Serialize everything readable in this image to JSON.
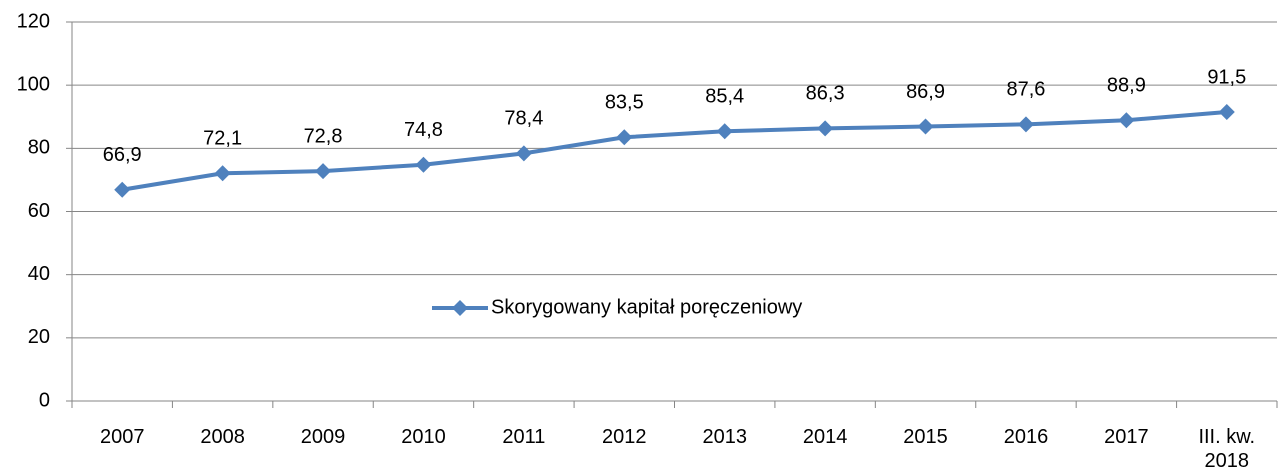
{
  "chart_data": {
    "type": "line",
    "categories": [
      "2007",
      "2008",
      "2009",
      "2010",
      "2011",
      "2012",
      "2013",
      "2014",
      "2015",
      "2016",
      "2017",
      "III. kw. 2018"
    ],
    "series": [
      {
        "name": "Skorygowany kapitał poręczeniowy",
        "color": "#4f81bd",
        "values": [
          66.9,
          72.1,
          72.8,
          74.8,
          78.4,
          83.5,
          85.4,
          86.3,
          86.9,
          87.6,
          88.9,
          91.5
        ],
        "value_labels": [
          "66,9",
          "72,1",
          "72,8",
          "74,8",
          "78,4",
          "83,5",
          "85,4",
          "86,3",
          "86,9",
          "87,6",
          "88,9",
          "91,5"
        ]
      }
    ],
    "ylim": [
      0,
      120
    ],
    "yticks": [
      0,
      20,
      40,
      60,
      80,
      100,
      120
    ],
    "grid": true,
    "legend": "center"
  }
}
